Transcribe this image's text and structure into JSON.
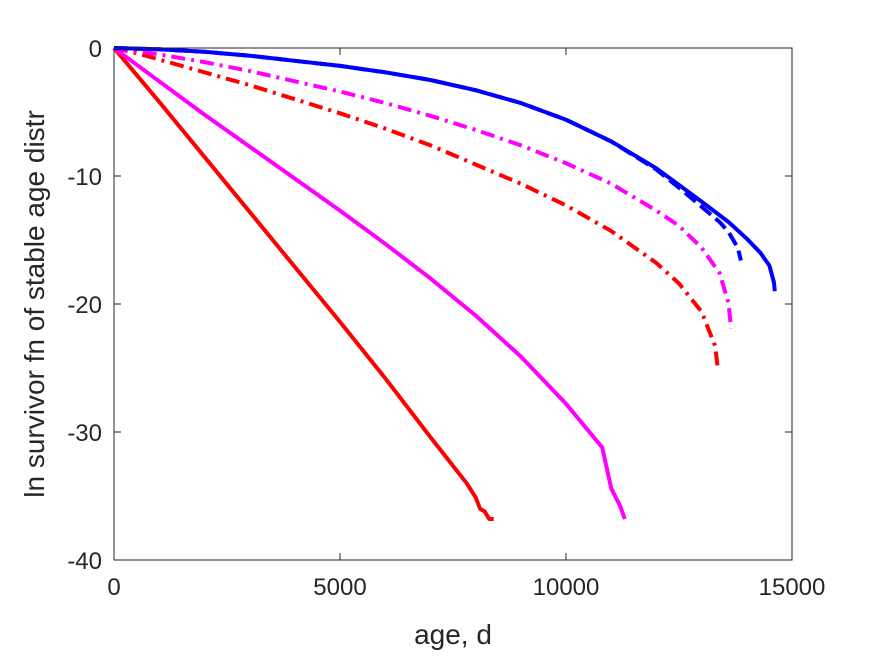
{
  "chart_data": {
    "type": "line",
    "title": "",
    "xlabel": "age, d",
    "ylabel": "ln survivor fn of stable age distr",
    "xlim": [
      0,
      15000
    ],
    "ylim": [
      -40,
      0
    ],
    "xticks": [
      0,
      5000,
      10000,
      15000
    ],
    "yticks": [
      0,
      -10,
      -20,
      -30,
      -40
    ],
    "xtick_labels": [
      "0",
      "5000",
      "10000",
      "15000"
    ],
    "ytick_labels": [
      "0",
      "-10",
      "-20",
      "-30",
      "-40"
    ],
    "grid": false,
    "legend": "none",
    "series": [
      {
        "color": "#ff0000",
        "style": "solid",
        "x": [
          0,
          1000,
          2000,
          3000,
          4000,
          5000,
          6000,
          7000,
          7800,
          8000,
          8100,
          8200,
          8300,
          8400
        ],
        "y": [
          0,
          -4.2,
          -8.5,
          -12.8,
          -17.1,
          -21.4,
          -25.8,
          -30.4,
          -34.0,
          -35.1,
          -36.0,
          -36.2,
          -36.8,
          -36.8
        ]
      },
      {
        "color": "#ff00ff",
        "style": "solid",
        "x": [
          0,
          1000,
          2000,
          3000,
          4000,
          5000,
          6000,
          7000,
          8000,
          9000,
          10000,
          10800,
          11000,
          11200,
          11300
        ],
        "y": [
          0,
          -2.6,
          -5.2,
          -7.7,
          -10.2,
          -12.7,
          -15.3,
          -18.0,
          -20.9,
          -24.1,
          -27.8,
          -31.2,
          -34.4,
          -35.8,
          -36.8
        ]
      },
      {
        "color": "#ff0000",
        "style": "dashdot",
        "x": [
          0,
          500,
          1000,
          2000,
          3000,
          4000,
          5000,
          6000,
          7000,
          8000,
          9000,
          10000,
          11000,
          12000,
          12500,
          13000,
          13300,
          13350
        ],
        "y": [
          0,
          -0.4,
          -0.9,
          -1.9,
          -2.9,
          -4.0,
          -5.1,
          -6.3,
          -7.6,
          -9.1,
          -10.6,
          -12.3,
          -14.3,
          -16.8,
          -18.4,
          -20.6,
          -23.3,
          -24.8
        ]
      },
      {
        "color": "#ff00ff",
        "style": "dashdot",
        "x": [
          0,
          1000,
          2000,
          3000,
          4000,
          5000,
          6000,
          7000,
          8000,
          9000,
          10000,
          11000,
          12000,
          12500,
          13000,
          13400,
          13600,
          13650
        ],
        "y": [
          0,
          -0.5,
          -1.1,
          -1.8,
          -2.6,
          -3.4,
          -4.3,
          -5.3,
          -6.4,
          -7.6,
          -9.0,
          -10.6,
          -12.7,
          -13.9,
          -15.6,
          -17.6,
          -20.0,
          -21.9
        ]
      },
      {
        "color": "#0000ff",
        "style": "dashed",
        "x": [
          0,
          1000,
          2000,
          3000,
          4000,
          5000,
          6000,
          7000,
          8000,
          9000,
          10000,
          11000,
          12000,
          12600,
          13000,
          13400,
          13600,
          13800,
          13870
        ],
        "y": [
          0,
          -0.1,
          -0.3,
          -0.6,
          -1.0,
          -1.4,
          -1.9,
          -2.5,
          -3.3,
          -4.3,
          -5.6,
          -7.3,
          -9.5,
          -11.2,
          -12.4,
          -13.6,
          -14.4,
          -15.6,
          -16.6
        ]
      },
      {
        "color": "#0000ff",
        "style": "solid",
        "x": [
          0,
          1000,
          2000,
          3000,
          4000,
          5000,
          6000,
          7000,
          8000,
          9000,
          10000,
          11000,
          12000,
          13000,
          13600,
          14000,
          14300,
          14500,
          14600,
          14620
        ],
        "y": [
          0,
          -0.1,
          -0.3,
          -0.6,
          -1.0,
          -1.4,
          -1.9,
          -2.5,
          -3.3,
          -4.3,
          -5.6,
          -7.3,
          -9.4,
          -12.0,
          -13.6,
          -14.9,
          -16.0,
          -17.0,
          -18.3,
          -19.0
        ]
      }
    ]
  }
}
